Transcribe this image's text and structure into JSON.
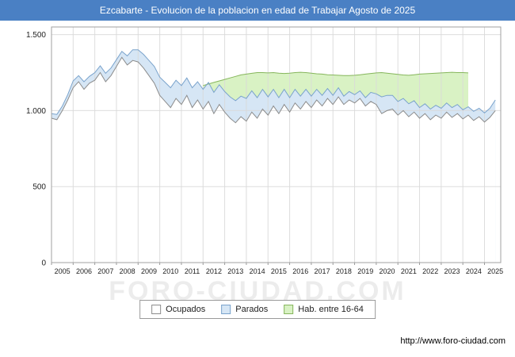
{
  "title_bar": {
    "text": "Ezcabarte - Evolucion de la poblacion en edad de Trabajar Agosto de 2025",
    "bg": "#4a80c4",
    "fg": "#ffffff"
  },
  "watermark": "FORO-CIUDAD.COM",
  "footer": {
    "url": "http://www.foro-ciudad.com"
  },
  "legend": {
    "items": [
      {
        "label": "Ocupados",
        "fill": "#ffffff",
        "stroke": "#8c8c8c"
      },
      {
        "label": "Parados",
        "fill": "#d6e6f5",
        "stroke": "#7aa3cc"
      },
      {
        "label": "Hab. entre 16-64",
        "fill": "#d9f2c4",
        "stroke": "#86b65c"
      }
    ]
  },
  "chart_data": {
    "type": "area",
    "title": "Ezcabarte - Evolucion de la poblacion en edad de Trabajar Agosto de 2025",
    "xlabel": "",
    "ylabel": "",
    "x_start": 2005,
    "x_step": 0.25,
    "xlim": [
      2005,
      2025.75
    ],
    "ylim": [
      0,
      1550
    ],
    "grid": true,
    "legend_position": "bottom",
    "x_tick_labels": [
      "2005",
      "2006",
      "2007",
      "2008",
      "2009",
      "2010",
      "2011",
      "2012",
      "2013",
      "2014",
      "2015",
      "2016",
      "2017",
      "2018",
      "2019",
      "2020",
      "2021",
      "2022",
      "2023",
      "2024",
      "2025"
    ],
    "y_ticks": [
      0,
      500,
      1000,
      1500
    ],
    "y_tick_labels": [
      "0",
      "500",
      "1.000",
      "1.500"
    ],
    "series": [
      {
        "name": "Ocupados",
        "mode": "absolute",
        "values": [
          950,
          940,
          1000,
          1070,
          1150,
          1190,
          1140,
          1180,
          1200,
          1250,
          1190,
          1230,
          1290,
          1350,
          1300,
          1330,
          1320,
          1280,
          1230,
          1180,
          1100,
          1060,
          1020,
          1080,
          1040,
          1100,
          1020,
          1070,
          1010,
          1060,
          980,
          1040,
          990,
          950,
          920,
          960,
          930,
          990,
          950,
          1010,
          970,
          1030,
          980,
          1040,
          990,
          1050,
          1010,
          1060,
          1020,
          1070,
          1030,
          1080,
          1040,
          1090,
          1040,
          1070,
          1050,
          1080,
          1030,
          1060,
          1040,
          980,
          1000,
          1010,
          970,
          1000,
          960,
          990,
          950,
          980,
          940,
          970,
          950,
          990,
          955,
          980,
          945,
          970,
          935,
          960,
          925,
          955,
          1000
        ]
      },
      {
        "name": "Parados",
        "mode": "stacked-on-ocupados",
        "values": [
          30,
          35,
          30,
          35,
          45,
          40,
          50,
          45,
          50,
          45,
          55,
          50,
          45,
          40,
          60,
          70,
          80,
          90,
          100,
          110,
          120,
          125,
          130,
          120,
          125,
          115,
          130,
          120,
          130,
          125,
          140,
          130,
          135,
          140,
          145,
          135,
          150,
          140,
          135,
          130,
          120,
          110,
          105,
          100,
          95,
          90,
          85,
          80,
          75,
          70,
          70,
          65,
          60,
          60,
          55,
          55,
          55,
          50,
          55,
          60,
          70,
          110,
          100,
          90,
          90,
          80,
          85,
          75,
          70,
          65,
          70,
          65,
          65,
          60,
          65,
          60,
          60,
          55,
          60,
          55,
          60,
          60,
          70
        ]
      },
      {
        "name": "Hab. entre 16-64",
        "mode": "absolute-total",
        "values": [
          null,
          null,
          null,
          null,
          null,
          null,
          null,
          null,
          null,
          null,
          null,
          null,
          null,
          null,
          null,
          null,
          null,
          null,
          null,
          null,
          null,
          null,
          null,
          null,
          null,
          null,
          null,
          null,
          1165,
          1175,
          1185,
          1195,
          1205,
          1215,
          1225,
          1235,
          1240,
          1245,
          1250,
          1250,
          1248,
          1250,
          1246,
          1244,
          1246,
          1250,
          1252,
          1250,
          1246,
          1242,
          1240,
          1236,
          1234,
          1232,
          1230,
          1230,
          1232,
          1236,
          1240,
          1244,
          1248,
          1250,
          1246,
          1242,
          1238,
          1234,
          1232,
          1236,
          1240,
          1242,
          1244,
          1246,
          1248,
          1250,
          1252,
          1250,
          1250,
          1248,
          null,
          null,
          null,
          null,
          null
        ]
      }
    ]
  }
}
